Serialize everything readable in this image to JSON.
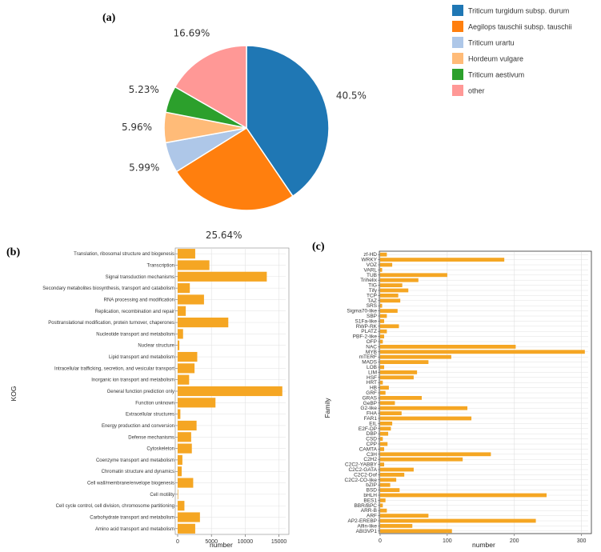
{
  "chart_data": [
    {
      "panel": "(a)",
      "type": "pie",
      "slices": [
        {
          "name": "Triticum turgidum subsp. durum",
          "value": 40.5,
          "label": "40.5%",
          "color": "#1f77b4"
        },
        {
          "name": "Aegilops tauschii subsp. tauschii",
          "value": 25.64,
          "label": "25.64%",
          "color": "#ff7f0e"
        },
        {
          "name": "Triticum urartu",
          "value": 5.99,
          "label": "5.99%",
          "color": "#aec7e8"
        },
        {
          "name": "Hordeum vulgare",
          "value": 5.96,
          "label": "5.96%",
          "color": "#ffbb78"
        },
        {
          "name": "Triticum aestivum",
          "value": 5.23,
          "label": "5.23%",
          "color": "#2ca02c"
        },
        {
          "name": "other",
          "value": 16.69,
          "label": "16.69%",
          "color": "#ff9896"
        }
      ]
    },
    {
      "panel": "(b)",
      "type": "bar",
      "orientation": "horizontal",
      "ylabel": "KOG",
      "xlabel": "number",
      "xlim": [
        0,
        16000
      ],
      "xticks": [
        0,
        5000,
        10000,
        15000
      ],
      "xtick_labels": [
        "0",
        "5000",
        "10000",
        "15000"
      ],
      "bar_color": "#f5a623",
      "categories": [
        "Translation, ribosomal structure and biogenesis",
        "Transcription",
        "Signal transduction mechanisms",
        "Secondary metabolites biosynthesis, transport and catabolism",
        "RNA processing and modification",
        "Replication, recombination and repair",
        "Posttranslational modification, protein turnover, chaperones",
        "Nucleotide transport and metabolism",
        "Nuclear structure",
        "Lipid transport and metabolism",
        "Intracellular trafficking, secretion, and vesicular transport",
        "Inorganic ion transport and metabolism",
        "General function prediction only",
        "Function unknown",
        "Extracellular structures",
        "Energy production and conversion",
        "Defense mechanisms",
        "Cytoskeleton",
        "Coenzyme transport and metabolism",
        "Chromatin structure and dynamics",
        "Cell wall/membrane/envelope biogenesis",
        "Cell motility",
        "Cell cycle control, cell division, chromosome partitioning",
        "Carbohydrate transport and metabolism",
        "Amino acid transport and metabolism"
      ],
      "values": [
        2600,
        4700,
        13200,
        1800,
        3900,
        1200,
        7500,
        800,
        250,
        2900,
        2500,
        1700,
        15500,
        5600,
        400,
        2800,
        2000,
        2100,
        700,
        600,
        2300,
        80,
        1000,
        3300,
        2600
      ]
    },
    {
      "panel": "(c)",
      "type": "bar",
      "orientation": "horizontal",
      "ylabel": "Family",
      "xlabel": "number",
      "xlim": [
        0,
        310
      ],
      "xticks": [
        0,
        100,
        200,
        300
      ],
      "xtick_labels": [
        "0",
        "100",
        "200",
        "300"
      ],
      "bar_color": "#f5a623",
      "categories": [
        "zf-HD",
        "WRKY",
        "VOZ",
        "VARL",
        "TUB",
        "Trihelix",
        "TIG",
        "Tify",
        "TCP",
        "TAZ",
        "SRS",
        "Sigma70-like",
        "SBP",
        "S1Fa-like",
        "RWP-RK",
        "PLATZ",
        "PBF-2-like",
        "OFP",
        "NAC",
        "MYB",
        "mTERF",
        "MADS",
        "LOB",
        "LIM",
        "HSF",
        "HRT",
        "HB",
        "GRF",
        "GRAS",
        "GeBP",
        "G2-like",
        "FHA",
        "FAR1",
        "EIL",
        "E2F-DP",
        "DBP",
        "CSD",
        "CPP",
        "CAMTA",
        "C3H",
        "C2H2",
        "C2C2-YABBY",
        "C2C2-GATA",
        "C2C2-Dof",
        "C2C2-CO-like",
        "bZIP",
        "BSD",
        "bHLH",
        "BES1",
        "BBR/BPC",
        "ARR-B",
        "ARF",
        "AP2-EREBP",
        "Alfin-like",
        "ABI3VP1"
      ],
      "values": [
        10,
        185,
        18,
        3,
        100,
        57,
        33,
        42,
        27,
        30,
        3,
        26,
        10,
        6,
        28,
        10,
        6,
        4,
        202,
        305,
        106,
        72,
        6,
        55,
        50,
        4,
        13,
        8,
        62,
        22,
        130,
        32,
        136,
        18,
        16,
        12,
        4,
        11,
        6,
        165,
        123,
        6,
        50,
        36,
        24,
        15,
        29,
        248,
        8,
        4,
        10,
        72,
        232,
        48,
        107
      ]
    }
  ]
}
